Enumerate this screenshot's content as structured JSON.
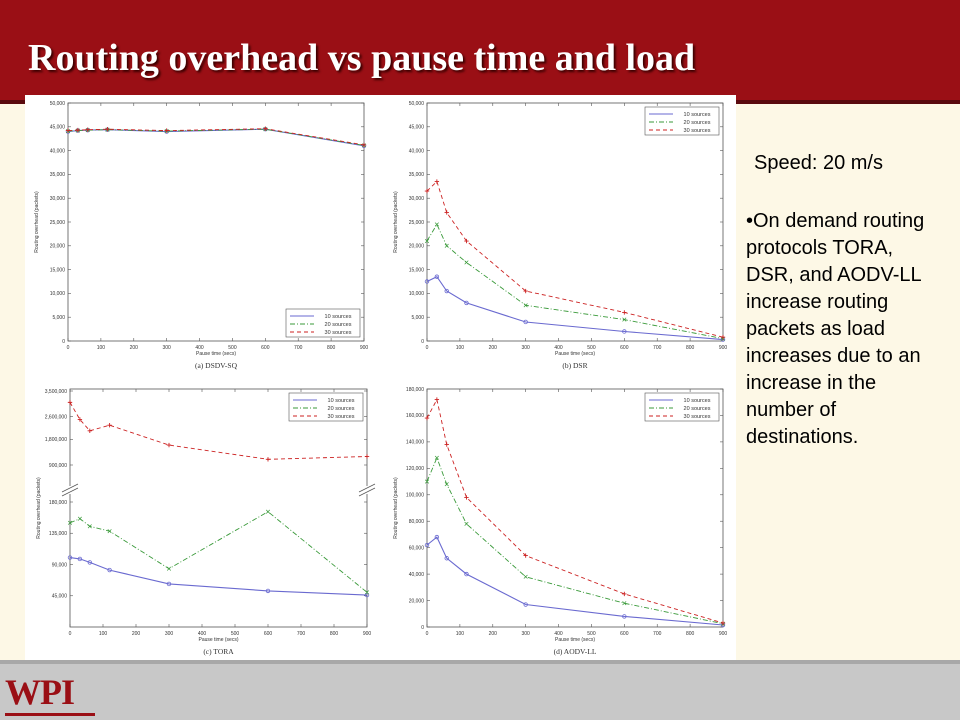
{
  "slide": {
    "title": "Routing overhead vs pause time and load",
    "speed": "Speed: 20 m/s",
    "bullet": "•On demand routing protocols TORA, DSR, and AODV-LL increase routing packets as load increases due to an increase in the number of destinations.",
    "logo": "WPI"
  },
  "colors": {
    "header": "#9a0f15",
    "background": "#fdf8e6",
    "series10": "#6a6ad0",
    "series20": "#3a9a3a",
    "series30": "#cc2222"
  },
  "chart_data": [
    {
      "type": "line",
      "caption": "(a) DSDV-SQ",
      "xlabel": "Pause time (secs)",
      "ylabel": "Routing overhead (packets)",
      "xlim": [
        0,
        900
      ],
      "ylim": [
        0,
        50000
      ],
      "xticks": [
        0,
        100,
        200,
        300,
        400,
        500,
        600,
        700,
        800,
        900
      ],
      "yticks": [
        "0",
        "5,000",
        "10,000",
        "15,000",
        "20,000",
        "25,000",
        "30,000",
        "35,000",
        "40,000",
        "45,000",
        "50,000"
      ],
      "legend": "bottom-right",
      "x": [
        0,
        30,
        60,
        120,
        300,
        600,
        900
      ],
      "series": [
        {
          "name": "10 sources",
          "values": [
            44000,
            44200,
            44300,
            44400,
            44000,
            44500,
            41000
          ]
        },
        {
          "name": "20 sources",
          "values": [
            44100,
            44200,
            44300,
            44400,
            44100,
            44500,
            41100
          ]
        },
        {
          "name": "30 sources",
          "values": [
            44200,
            44300,
            44400,
            44500,
            44200,
            44600,
            41200
          ]
        }
      ]
    },
    {
      "type": "line",
      "caption": "(b) DSR",
      "xlabel": "Pause time (secs)",
      "ylabel": "Routing overhead (packets)",
      "xlim": [
        0,
        900
      ],
      "ylim": [
        0,
        50000
      ],
      "xticks": [
        0,
        100,
        200,
        300,
        400,
        500,
        600,
        700,
        800,
        900
      ],
      "yticks": [
        "0",
        "5,000",
        "10,000",
        "15,000",
        "20,000",
        "25,000",
        "30,000",
        "35,000",
        "40,000",
        "45,000",
        "50,000"
      ],
      "legend": "top-right",
      "x": [
        0,
        30,
        60,
        120,
        300,
        600,
        900
      ],
      "series": [
        {
          "name": "10 sources",
          "values": [
            12500,
            13500,
            10500,
            8000,
            4000,
            2000,
            300
          ]
        },
        {
          "name": "20 sources",
          "values": [
            21000,
            24500,
            20000,
            16500,
            7500,
            4500,
            500
          ]
        },
        {
          "name": "30 sources",
          "values": [
            31500,
            33500,
            27000,
            21000,
            10500,
            6000,
            800
          ]
        }
      ]
    },
    {
      "type": "line",
      "caption": "(c) TORA",
      "xlabel": "Pause time (secs)",
      "ylabel": "Routing overhead (packets)",
      "xlim": [
        0,
        900
      ],
      "xticks": [
        0,
        100,
        200,
        300,
        400,
        500,
        600,
        700,
        800,
        900
      ],
      "yticks": [
        "45,000",
        "90,000",
        "135,000",
        "180,000",
        "900,000",
        "1,800,000",
        "2,600,000",
        "3,500,000"
      ],
      "broken_axis": true,
      "legend": "top-right",
      "x": [
        0,
        30,
        60,
        120,
        300,
        600,
        900
      ],
      "series": [
        {
          "name": "10 sources",
          "values": [
            100000,
            98000,
            93000,
            82000,
            62000,
            52000,
            46000
          ]
        },
        {
          "name": "20 sources",
          "values": [
            150000,
            156000,
            145000,
            138000,
            84000,
            166000,
            50000
          ]
        },
        {
          "name": "30 sources",
          "values": [
            3100000,
            2500000,
            2100000,
            2300000,
            1600000,
            1100000,
            1200000
          ]
        }
      ]
    },
    {
      "type": "line",
      "caption": "(d) AODV-LL",
      "xlabel": "Pause time (secs)",
      "ylabel": "Routing overhead (packets)",
      "xlim": [
        0,
        900
      ],
      "ylim": [
        0,
        180000
      ],
      "xticks": [
        0,
        100,
        200,
        300,
        400,
        500,
        600,
        700,
        800,
        900
      ],
      "yticks": [
        "0",
        "20,000",
        "40,000",
        "60,000",
        "80,000",
        "100,000",
        "120,000",
        "140,000",
        "160,000",
        "180,000"
      ],
      "legend": "top-right",
      "x": [
        0,
        30,
        60,
        120,
        300,
        600,
        900
      ],
      "series": [
        {
          "name": "10 sources",
          "values": [
            62000,
            68000,
            52000,
            40000,
            17000,
            8000,
            1500
          ]
        },
        {
          "name": "20 sources",
          "values": [
            110000,
            128000,
            108000,
            78000,
            38000,
            18000,
            2500
          ]
        },
        {
          "name": "30 sources",
          "values": [
            158000,
            172000,
            138000,
            98000,
            54000,
            25000,
            3000
          ]
        }
      ]
    }
  ]
}
